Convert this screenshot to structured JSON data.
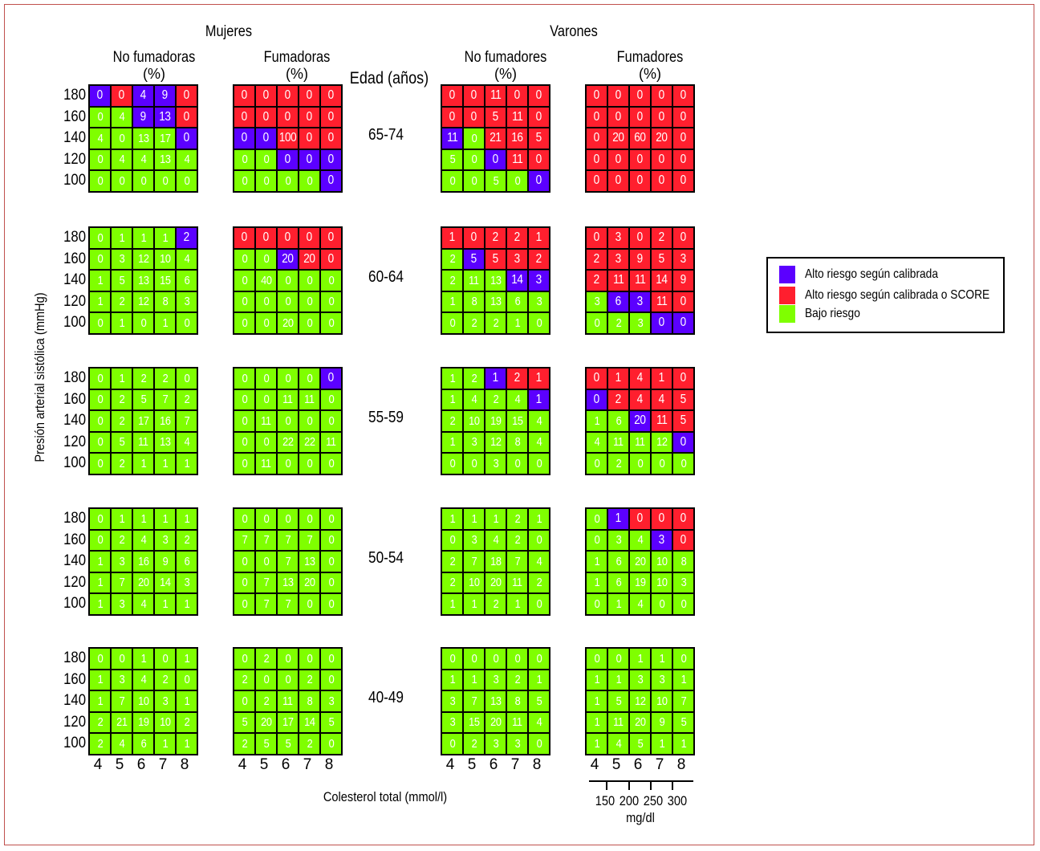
{
  "headings": {
    "women": "Mujeres",
    "men": "Varones",
    "women_nonsmokers": "No fumadoras",
    "women_smokers": "Fumadoras",
    "men_nonsmokers": "No fumadores",
    "men_smokers": "Fumadores",
    "percent": "(%)",
    "age_header": "Edad (años)"
  },
  "axes": {
    "y_title": "Presión  arterial sistólica  (mmHg)",
    "y_ticks": [
      "180",
      "160",
      "140",
      "120",
      "100"
    ],
    "x_ticks": [
      "4",
      "5",
      "6",
      "7",
      "8"
    ],
    "x_title": "Colesterol total (mmol/l)",
    "mg_ticks": [
      "150",
      "200",
      "250",
      "300"
    ],
    "mg_unit": "mg/dl"
  },
  "ages": [
    "65-74",
    "60-64",
    "55-59",
    "50-54",
    "40-49"
  ],
  "legend": [
    {
      "label": "Alto riesgo según calibrada",
      "color": "#5b00ff",
      "key": "p"
    },
    {
      "label": "Alto riesgo según calibrada o SCORE",
      "color": "#ff1f2e",
      "key": "r"
    },
    {
      "label": "Bajo riesgo",
      "color": "#7fff00",
      "key": "g"
    }
  ],
  "colors": {
    "low": "#7fff00",
    "high_both": "#ff1f2e",
    "high_calibrated": "#5b00ff"
  },
  "panels": [
    [
      {
        "v": [
          [
            0,
            0,
            4,
            9,
            0
          ],
          [
            0,
            4,
            9,
            13,
            0
          ],
          [
            4,
            0,
            13,
            17,
            0
          ],
          [
            0,
            4,
            4,
            13,
            4
          ],
          [
            0,
            0,
            0,
            0,
            0
          ]
        ],
        "c": [
          "prppr",
          "ggppr",
          "ggggp",
          "ggggg",
          "ggggg"
        ]
      },
      {
        "v": [
          [
            0,
            0,
            0,
            0,
            0
          ],
          [
            0,
            0,
            0,
            0,
            0
          ],
          [
            0,
            0,
            100,
            0,
            0
          ],
          [
            0,
            0,
            0,
            0,
            0
          ],
          [
            0,
            0,
            0,
            0,
            0
          ]
        ],
        "c": [
          "rrrrr",
          "rrrrr",
          "pprrr",
          "ggppp",
          "ggggp"
        ]
      },
      {
        "v": [
          [
            0,
            0,
            11,
            0,
            0
          ],
          [
            0,
            0,
            5,
            11,
            0
          ],
          [
            11,
            0,
            21,
            16,
            5
          ],
          [
            5,
            0,
            0,
            11,
            0
          ],
          [
            0,
            0,
            5,
            0,
            0
          ]
        ],
        "c": [
          "rrrrr",
          "rrrrr",
          "pgrrr",
          "ggprr",
          "ggggp"
        ]
      },
      {
        "v": [
          [
            0,
            0,
            0,
            0,
            0
          ],
          [
            0,
            0,
            0,
            0,
            0
          ],
          [
            0,
            20,
            60,
            20,
            0
          ],
          [
            0,
            0,
            0,
            0,
            0
          ],
          [
            0,
            0,
            0,
            0,
            0
          ]
        ],
        "c": [
          "rrrrr",
          "rrrrr",
          "rrrrr",
          "rrrrr",
          "rrrrr"
        ]
      }
    ],
    [
      {
        "v": [
          [
            0,
            1,
            1,
            1,
            2
          ],
          [
            0,
            3,
            12,
            10,
            4
          ],
          [
            1,
            5,
            13,
            15,
            6
          ],
          [
            1,
            2,
            12,
            8,
            3
          ],
          [
            0,
            1,
            0,
            1,
            0
          ]
        ],
        "c": [
          "ggggp",
          "ggggg",
          "ggggg",
          "ggggg",
          "ggggg"
        ]
      },
      {
        "v": [
          [
            0,
            0,
            0,
            0,
            0
          ],
          [
            0,
            0,
            20,
            20,
            0
          ],
          [
            0,
            40,
            0,
            0,
            0
          ],
          [
            0,
            0,
            0,
            0,
            0
          ],
          [
            0,
            0,
            20,
            0,
            0
          ]
        ],
        "c": [
          "rrrrr",
          "ggprr",
          "ggggg",
          "ggggg",
          "ggggg"
        ]
      },
      {
        "v": [
          [
            1,
            0,
            2,
            2,
            1
          ],
          [
            2,
            5,
            5,
            3,
            2
          ],
          [
            2,
            11,
            13,
            14,
            3
          ],
          [
            1,
            8,
            13,
            6,
            3
          ],
          [
            0,
            2,
            2,
            1,
            0
          ]
        ],
        "c": [
          "rrrrr",
          "gprrr",
          "gggpp",
          "ggggg",
          "ggggg"
        ]
      },
      {
        "v": [
          [
            0,
            3,
            0,
            2,
            0
          ],
          [
            2,
            3,
            9,
            5,
            3
          ],
          [
            2,
            11,
            11,
            14,
            9
          ],
          [
            3,
            6,
            3,
            11,
            0
          ],
          [
            0,
            2,
            3,
            0,
            0
          ]
        ],
        "c": [
          "rrrrr",
          "rrrrr",
          "rrrrr",
          "gpprr",
          "gggpp"
        ]
      }
    ],
    [
      {
        "v": [
          [
            0,
            1,
            2,
            2,
            0
          ],
          [
            0,
            2,
            5,
            7,
            2
          ],
          [
            0,
            2,
            17,
            16,
            7
          ],
          [
            0,
            5,
            11,
            13,
            4
          ],
          [
            0,
            2,
            1,
            1,
            1
          ]
        ],
        "c": [
          "ggggg",
          "ggggg",
          "ggggg",
          "ggggg",
          "ggggg"
        ]
      },
      {
        "v": [
          [
            0,
            0,
            0,
            0,
            0
          ],
          [
            0,
            0,
            11,
            11,
            0
          ],
          [
            0,
            11,
            0,
            0,
            0
          ],
          [
            0,
            0,
            22,
            22,
            11
          ],
          [
            0,
            11,
            0,
            0,
            0
          ]
        ],
        "c": [
          "ggggp",
          "ggggg",
          "ggggg",
          "ggggg",
          "ggggg"
        ]
      },
      {
        "v": [
          [
            1,
            2,
            1,
            2,
            1
          ],
          [
            1,
            4,
            2,
            4,
            1
          ],
          [
            2,
            10,
            19,
            15,
            4
          ],
          [
            1,
            3,
            12,
            8,
            4
          ],
          [
            0,
            0,
            3,
            0,
            0
          ]
        ],
        "c": [
          "ggprr",
          "ggggp",
          "ggggg",
          "ggggg",
          "ggggg"
        ]
      },
      {
        "v": [
          [
            0,
            1,
            4,
            1,
            0
          ],
          [
            0,
            2,
            4,
            4,
            5
          ],
          [
            1,
            6,
            20,
            11,
            5
          ],
          [
            4,
            11,
            11,
            12,
            0
          ],
          [
            0,
            2,
            0,
            0,
            0
          ]
        ],
        "c": [
          "rrrrr",
          "prrrr",
          "ggprr",
          "ggggp",
          "ggggg"
        ]
      }
    ],
    [
      {
        "v": [
          [
            0,
            1,
            1,
            1,
            1
          ],
          [
            0,
            2,
            4,
            3,
            2
          ],
          [
            1,
            3,
            16,
            9,
            6
          ],
          [
            1,
            7,
            20,
            14,
            3
          ],
          [
            1,
            3,
            4,
            1,
            1
          ]
        ],
        "c": [
          "ggggg",
          "ggggg",
          "ggggg",
          "ggggg",
          "ggggg"
        ]
      },
      {
        "v": [
          [
            0,
            0,
            0,
            0,
            0
          ],
          [
            7,
            7,
            7,
            7,
            0
          ],
          [
            0,
            0,
            7,
            13,
            0
          ],
          [
            0,
            7,
            13,
            20,
            0
          ],
          [
            0,
            7,
            7,
            0,
            0
          ]
        ],
        "c": [
          "ggggg",
          "ggggg",
          "ggggg",
          "ggggg",
          "ggggg"
        ]
      },
      {
        "v": [
          [
            1,
            1,
            1,
            2,
            1
          ],
          [
            0,
            3,
            4,
            2,
            0
          ],
          [
            2,
            7,
            18,
            7,
            4
          ],
          [
            2,
            10,
            20,
            11,
            2
          ],
          [
            1,
            1,
            2,
            1,
            0
          ]
        ],
        "c": [
          "ggggg",
          "ggggg",
          "ggggg",
          "ggggg",
          "ggggg"
        ]
      },
      {
        "v": [
          [
            0,
            1,
            0,
            0,
            0
          ],
          [
            0,
            3,
            4,
            3,
            0
          ],
          [
            1,
            6,
            20,
            10,
            8
          ],
          [
            1,
            6,
            19,
            10,
            3
          ],
          [
            0,
            1,
            4,
            0,
            0
          ]
        ],
        "c": [
          "gprrr",
          "gggpr",
          "ggggg",
          "ggggg",
          "ggggg"
        ]
      }
    ],
    [
      {
        "v": [
          [
            0,
            0,
            1,
            0,
            1
          ],
          [
            1,
            3,
            4,
            2,
            0
          ],
          [
            1,
            7,
            10,
            3,
            1
          ],
          [
            2,
            21,
            19,
            10,
            2
          ],
          [
            2,
            4,
            6,
            1,
            1
          ]
        ],
        "c": [
          "ggggg",
          "ggggg",
          "ggggg",
          "ggggg",
          "ggggg"
        ]
      },
      {
        "v": [
          [
            0,
            2,
            0,
            0,
            0
          ],
          [
            2,
            0,
            0,
            2,
            0
          ],
          [
            0,
            2,
            11,
            8,
            3
          ],
          [
            5,
            20,
            17,
            14,
            5
          ],
          [
            2,
            5,
            5,
            2,
            0
          ]
        ],
        "c": [
          "ggggg",
          "ggggg",
          "ggggg",
          "ggggg",
          "ggggg"
        ]
      },
      {
        "v": [
          [
            0,
            0,
            0,
            0,
            0
          ],
          [
            1,
            1,
            3,
            2,
            1
          ],
          [
            3,
            7,
            13,
            8,
            5
          ],
          [
            3,
            15,
            20,
            11,
            4
          ],
          [
            0,
            2,
            3,
            3,
            0
          ]
        ],
        "c": [
          "ggggg",
          "ggggg",
          "ggggg",
          "ggggg",
          "ggggg"
        ]
      },
      {
        "v": [
          [
            0,
            0,
            1,
            1,
            0
          ],
          [
            1,
            1,
            3,
            3,
            1
          ],
          [
            1,
            5,
            12,
            10,
            7
          ],
          [
            1,
            11,
            20,
            9,
            5
          ],
          [
            1,
            4,
            5,
            1,
            1
          ]
        ],
        "c": [
          "ggggg",
          "ggggg",
          "ggggg",
          "ggggg",
          "ggggg"
        ]
      }
    ]
  ]
}
